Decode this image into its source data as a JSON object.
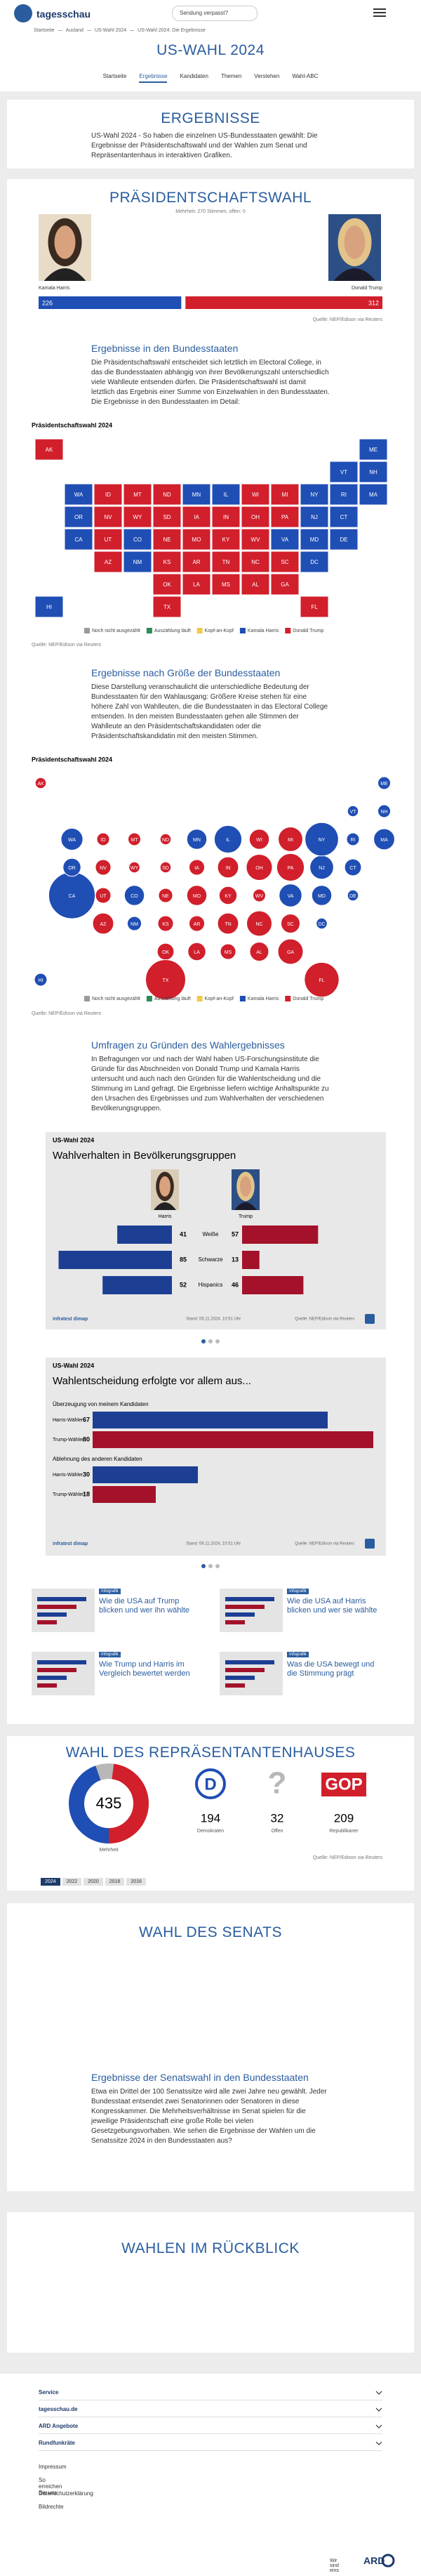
{
  "header": {
    "logo": "tagesschau",
    "search": "Sendung verpasst?"
  },
  "breadcrumb": [
    "Startseite",
    "Ausland",
    "US-Wahl 2024",
    "US-Wahl 2024: Die Ergebnisse"
  ],
  "page_title": "US-WAHL 2024",
  "nav": [
    "Startseite",
    "Ergebnisse",
    "Kandidaten",
    "Themen",
    "Verstehen",
    "Wahl-ABC"
  ],
  "intro": {
    "title": "ERGEBNISSE",
    "text": "US-Wahl 2024 - So haben die einzelnen US-Bundesstaaten gewählt: Die Ergebnisse der Präsidentschaftswahl und der Wahlen zum Senat und Repräsentantenhaus in interaktiven Grafiken."
  },
  "president": {
    "title": "PRÄSIDENTSCHAFTSWAHL",
    "subtitle": "Mehrheit: 270 Stimmen, offen: 0",
    "source": "Quelle: NEP/Edison via Reuters"
  },
  "states_section": {
    "title": "Ergebnisse in den Bundesstaaten",
    "text": "Die Präsidentschaftswahl entscheidet sich letztlich im Electoral College, in das die Bundesstaaten abhängig von ihrer Bevölkerungszahl unterschiedlich viele Wahlleute entsenden dürfen. Die Präsidentschaftswahl ist damit letztlich das Ergebnis einer Summe von Einzelwahlen in den Bundesstaaten. Die Ergebnisse in den Bundesstaaten im Detail:",
    "source": "Quelle: NEP/Edison via Reuters"
  },
  "size_section": {
    "title": "Ergebnisse nach Größe der Bundesstaaten",
    "text": "Diese Darstellung veranschaulicht die unterschiedliche Bedeutung der Bundesstaaten für den Wahlausgang: Größere Kreise stehen für eine höhere Zahl von Wahlleuten, die die Bundesstaaten in das Electoral College entsenden. In den meisten Bundesstaaten gehen alle Stimmen der Wahlleute an den Präsidentschaftskandidaten oder die Präsidentschaftskandidatin mit den meisten Stimmen.",
    "source": "Quelle: NEP/Edison via Reuters"
  },
  "survey_section": {
    "title": "Umfragen zu Gründen des Wahlergebnisses",
    "text": "In Befragungen vor und nach der Wahl haben US-Forschungsinstitute die Gründe für das Abschneiden von Donald Trump und Kamala Harris untersucht und auch nach den Gründen für die Wahlentscheidung und die Stimmung im Land gefragt. Die Ergebnisse liefern wichtige Anhaltspunkte zu den Ursachen des Ergebnisses und zum Wahlverhalten der verschiedenen Bevölkerungsgruppen."
  },
  "teasers": [
    {
      "tag": "Infografik",
      "title": "Wie die USA auf Trump blicken und wer ihn wählte"
    },
    {
      "tag": "Infografik",
      "title": "Wie die USA auf Harris blicken und wer sie wählte"
    },
    {
      "tag": "Infografik",
      "title": "Wie Trump und Harris im Vergleich bewertet werden"
    },
    {
      "tag": "Infografik",
      "title": "Was die USA bewegt und die Stimmung prägt"
    }
  ],
  "house": {
    "title": "WAHL DES REPRÄSENTANTENHAUSES",
    "source": "Quelle: NEP/Edison via Reuters",
    "years": [
      "2024",
      "2022",
      "2020",
      "2018",
      "2016"
    ]
  },
  "senate": {
    "title": "WAHL DES SENATS",
    "subtitle": "Ergebnisse der Senatswahl in den Bundesstaaten",
    "text": "Etwa ein Drittel der 100 Senatssitze wird alle zwei Jahre neu gewählt. Jeder Bundesstaat entsendet zwei Senatorinnen oder Senatoren in diese Kongresskammer. Die Mehrheitsverhältnisse im Senat spielen für die jeweilige Präsidentschaft eine große Rolle bei vielen Gesetzgebungsvorhaben. Wie sehen die Ergebnisse der Wahlen um die Senatssitze 2024 in den Bundesstaaten aus?"
  },
  "review": {
    "title": "WAHLEN IM RÜCKBLICK"
  },
  "footer": {
    "menus": [
      "Service",
      "tagesschau.de",
      "ARD Angebote",
      "Rundfunkräte"
    ],
    "links": [
      "Impressum",
      "So erreichen Sie uns",
      "Datenschutzerklärung",
      "Bildrechte"
    ],
    "claim": "Wir sind eins",
    "brand": "ARD"
  },
  "chart_data": [
    {
      "type": "bar",
      "categories": [
        "Kamala Harris",
        "Donald Trump"
      ],
      "values": [
        226,
        312
      ],
      "colors": [
        "#1f4eb4",
        "#d11f2c"
      ]
    },
    {
      "type": "map",
      "title": "Präsidentschaftswahl 2024",
      "categories": [
        "AL",
        "AK",
        "AZ",
        "AR",
        "CA",
        "CO",
        "CT",
        "DE",
        "DC",
        "FL",
        "GA",
        "HI",
        "ID",
        "IL",
        "IN",
        "IA",
        "KS",
        "KY",
        "LA",
        "ME",
        "MD",
        "MA",
        "MI",
        "MN",
        "MS",
        "MO",
        "MT",
        "NE",
        "NV",
        "NH",
        "NJ",
        "NM",
        "NY",
        "NC",
        "ND",
        "OH",
        "OK",
        "OR",
        "PA",
        "RI",
        "SC",
        "SD",
        "TN",
        "TX",
        "UT",
        "VT",
        "VA",
        "WA",
        "WV",
        "WI",
        "WY"
      ],
      "winners": [
        "Donald Trump",
        "Donald Trump",
        "Donald Trump",
        "Donald Trump",
        "Kamala Harris",
        "Kamala Harris",
        "Kamala Harris",
        "Kamala Harris",
        "Kamala Harris",
        "Donald Trump",
        "Donald Trump",
        "Kamala Harris",
        "Donald Trump",
        "Kamala Harris",
        "Donald Trump",
        "Donald Trump",
        "Donald Trump",
        "Donald Trump",
        "Donald Trump",
        "Kamala Harris",
        "Kamala Harris",
        "Kamala Harris",
        "Donald Trump",
        "Kamala Harris",
        "Donald Trump",
        "Donald Trump",
        "Donald Trump",
        "Donald Trump",
        "Donald Trump",
        "Kamala Harris",
        "Kamala Harris",
        "Kamala Harris",
        "Kamala Harris",
        "Donald Trump",
        "Donald Trump",
        "Donald Trump",
        "Donald Trump",
        "Kamala Harris",
        "Donald Trump",
        "Kamala Harris",
        "Donald Trump",
        "Donald Trump",
        "Donald Trump",
        "Donald Trump",
        "Donald Trump",
        "Kamala Harris",
        "Kamala Harris",
        "Kamala Harris",
        "Donald Trump",
        "Donald Trump",
        "Donald Trump"
      ],
      "series": [
        {
          "name": "Noch nicht ausgezählt",
          "color": "#9b9b9b"
        },
        {
          "name": "Auszählung läuft",
          "color": "#2e8b57"
        },
        {
          "name": "Kopf-an-Kopf",
          "color": "#f2c94c"
        },
        {
          "name": "Kamala Harris",
          "color": "#1f4eb4"
        },
        {
          "name": "Donald Trump",
          "color": "#d11f2c"
        }
      ]
    },
    {
      "type": "bubble",
      "title": "Präsidentschaftswahl 2024",
      "categories": [
        "AL",
        "AK",
        "AZ",
        "AR",
        "CA",
        "CO",
        "CT",
        "DE",
        "DC",
        "FL",
        "GA",
        "HI",
        "ID",
        "IL",
        "IN",
        "IA",
        "KS",
        "KY",
        "LA",
        "ME",
        "MD",
        "MA",
        "MI",
        "MN",
        "MS",
        "MO",
        "MT",
        "NE",
        "NV",
        "NH",
        "NJ",
        "NM",
        "NY",
        "NC",
        "ND",
        "OH",
        "OK",
        "OR",
        "PA",
        "RI",
        "SC",
        "SD",
        "TN",
        "TX",
        "UT",
        "VT",
        "VA",
        "WA",
        "WV",
        "WI",
        "WY"
      ],
      "values": [
        9,
        3,
        11,
        6,
        54,
        10,
        7,
        3,
        3,
        30,
        16,
        4,
        4,
        19,
        11,
        6,
        6,
        8,
        8,
        4,
        10,
        11,
        15,
        10,
        6,
        10,
        4,
        5,
        6,
        4,
        14,
        5,
        28,
        16,
        3,
        17,
        7,
        8,
        19,
        4,
        9,
        3,
        11,
        40,
        6,
        3,
        13,
        12,
        4,
        10,
        3
      ],
      "winners": [
        "Donald Trump",
        "Donald Trump",
        "Donald Trump",
        "Donald Trump",
        "Kamala Harris",
        "Kamala Harris",
        "Kamala Harris",
        "Kamala Harris",
        "Kamala Harris",
        "Donald Trump",
        "Donald Trump",
        "Kamala Harris",
        "Donald Trump",
        "Kamala Harris",
        "Donald Trump",
        "Donald Trump",
        "Donald Trump",
        "Donald Trump",
        "Donald Trump",
        "Kamala Harris",
        "Kamala Harris",
        "Kamala Harris",
        "Donald Trump",
        "Kamala Harris",
        "Donald Trump",
        "Donald Trump",
        "Donald Trump",
        "Donald Trump",
        "Donald Trump",
        "Kamala Harris",
        "Kamala Harris",
        "Kamala Harris",
        "Kamala Harris",
        "Donald Trump",
        "Donald Trump",
        "Donald Trump",
        "Donald Trump",
        "Kamala Harris",
        "Donald Trump",
        "Kamala Harris",
        "Donald Trump",
        "Donald Trump",
        "Donald Trump",
        "Donald Trump",
        "Donald Trump",
        "Kamala Harris",
        "Kamala Harris",
        "Kamala Harris",
        "Donald Trump",
        "Donald Trump",
        "Donald Trump"
      ],
      "series": [
        {
          "name": "Noch nicht ausgezählt",
          "color": "#9b9b9b"
        },
        {
          "name": "Auszählung läuft",
          "color": "#2e8b57"
        },
        {
          "name": "Kopf-an-Kopf",
          "color": "#f2c94c"
        },
        {
          "name": "Kamala Harris",
          "color": "#1f4eb4"
        },
        {
          "name": "Donald Trump",
          "color": "#d11f2c"
        }
      ]
    },
    {
      "type": "diverging-bar",
      "kicker": "US-Wahl 2024",
      "title": "Wahlverhalten in Bevölkerungsgruppen",
      "categories": [
        "Weiße",
        "Schwarze",
        "Hispanics"
      ],
      "series": [
        {
          "name": "Harris",
          "color": "#1c3f94",
          "values": [
            41,
            85,
            52
          ]
        },
        {
          "name": "Trump",
          "color": "#a3122a",
          "values": [
            57,
            13,
            46
          ]
        }
      ],
      "credit": "infratest dimap",
      "stand": "Stand: 06.11.2024, 10:51 Uhr",
      "source": "Quelle: NEP/Edison via Reuters"
    },
    {
      "type": "grouped-bar",
      "kicker": "US-Wahl 2024",
      "title": "Wahlentscheidung erfolgte vor allem aus...",
      "groups": [
        {
          "name": "Überzeugung von meinem Kandidaten",
          "categories": [
            "Harris-Wähler",
            "Trump-Wähler"
          ],
          "values": [
            67,
            80
          ]
        },
        {
          "name": "Ablehnung des anderen Kandidaten",
          "categories": [
            "Harris-Wähler",
            "Trump-Wähler"
          ],
          "values": [
            30,
            18
          ]
        }
      ],
      "colors": [
        "#1c3f94",
        "#a3122a"
      ],
      "credit": "infratest dimap",
      "stand": "Stand: 06.11.2024, 10:51 Uhr",
      "source": "Quelle: NEP/Edison via Reuters"
    },
    {
      "type": "donut",
      "total": 435,
      "label": "Mehrheit",
      "series": [
        {
          "name": "Demokraten",
          "logo": "D",
          "color": "#1f4eb4",
          "value": 194
        },
        {
          "name": "Offen",
          "logo": "?",
          "color": "#b8b8b8",
          "value": 32
        },
        {
          "name": "Republikaner",
          "logo": "GOP",
          "color": "#d11f2c",
          "value": 209
        }
      ]
    }
  ]
}
